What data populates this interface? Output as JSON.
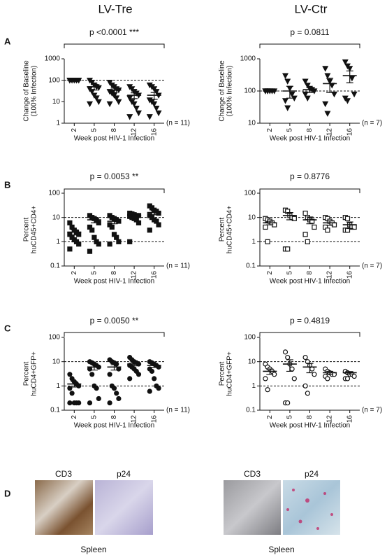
{
  "figure": {
    "columns": [
      "LV-Tre",
      "LV-Ctr"
    ],
    "panel_d": {
      "label": "D",
      "left": {
        "images": [
          "CD3",
          "p24"
        ],
        "caption": "Spleen"
      },
      "right": {
        "images": [
          "CD3",
          "p24"
        ],
        "caption": "Spleen"
      }
    }
  },
  "chart_data": [
    {
      "type": "dot",
      "panel": "A",
      "title": "p <0.0001 ***",
      "ylabel": [
        "Change of Baseline",
        "(100% Infection)"
      ],
      "xlabel": "Week post HIV-1 Infection",
      "n_label": "(n = 11)",
      "categories": [
        "2",
        "5",
        "8",
        "12",
        "16"
      ],
      "marker": "triangle-down",
      "filled": true,
      "log": true,
      "ylim": [
        1,
        1000
      ],
      "yticks": [
        1,
        10,
        100,
        1000
      ],
      "reference_lines": [
        100
      ],
      "points": [
        [
          100,
          100,
          100,
          100,
          100,
          100,
          100,
          100,
          100,
          100,
          100
        ],
        [
          100,
          80,
          60,
          50,
          45,
          40,
          30,
          20,
          15,
          10,
          8
        ],
        [
          80,
          60,
          50,
          40,
          35,
          30,
          25,
          20,
          15,
          10,
          8
        ],
        [
          50,
          40,
          30,
          25,
          20,
          15,
          10,
          8,
          5,
          3,
          2
        ],
        [
          60,
          50,
          40,
          30,
          20,
          12,
          10,
          8,
          5,
          3,
          2
        ]
      ],
      "means": [
        100,
        50,
        35,
        20,
        20
      ],
      "sems": [
        0,
        15,
        8,
        6,
        7
      ]
    },
    {
      "type": "dot",
      "title": "p = 0.0811",
      "ylabel": [
        "Change of Baseline",
        "(100% Infection)"
      ],
      "xlabel": "Week post HIV-1 Infection",
      "n_label": "(n = 7)",
      "categories": [
        "2",
        "5",
        "8",
        "12",
        "16"
      ],
      "marker": "triangle-down",
      "filled": true,
      "log": true,
      "ylim": [
        10,
        1000
      ],
      "yticks": [
        10,
        100,
        1000
      ],
      "reference_lines": [
        100
      ],
      "points": [
        [
          100,
          100,
          100,
          100,
          100,
          100,
          100
        ],
        [
          300,
          200,
          120,
          80,
          60,
          50,
          30
        ],
        [
          200,
          150,
          120,
          110,
          100,
          80,
          60
        ],
        [
          500,
          300,
          200,
          150,
          80,
          40,
          20
        ],
        [
          800,
          600,
          500,
          250,
          80,
          60,
          50
        ]
      ],
      "means": [
        100,
        100,
        110,
        170,
        300
      ],
      "sems": [
        0,
        40,
        20,
        80,
        120
      ]
    },
    {
      "type": "dot",
      "panel": "B",
      "title": "p = 0.0053 **",
      "ylabel": [
        "Percent",
        "huCD45+CD4+"
      ],
      "xlabel": "Week post HIV-1 Infection",
      "n_label": "(n = 11)",
      "categories": [
        "2",
        "5",
        "8",
        "12",
        "16"
      ],
      "marker": "square",
      "filled": true,
      "log": true,
      "ylim": [
        0.1,
        100
      ],
      "yticks": [
        0.1,
        1,
        10,
        100
      ],
      "reference_lines": [
        1,
        10
      ],
      "points": [
        [
          6,
          4,
          3,
          2.5,
          2,
          2,
          1.5,
          1.2,
          1,
          0.8,
          0.5
        ],
        [
          12,
          10,
          9,
          8,
          6,
          4,
          3,
          1.5,
          1,
          0.8,
          0.4
        ],
        [
          12,
          10,
          9,
          8,
          7,
          5,
          4,
          2,
          1.5,
          1,
          0.8
        ],
        [
          15,
          14,
          13,
          12,
          12,
          11,
          10,
          9,
          8,
          6,
          1
        ],
        [
          30,
          25,
          20,
          18,
          15,
          12,
          10,
          8,
          7,
          5,
          3
        ]
      ],
      "means": [
        2.5,
        8,
        7,
        12,
        16
      ],
      "sems": [
        0.6,
        2,
        1.5,
        1.5,
        3
      ]
    },
    {
      "type": "dot",
      "title": "p = 0.8776",
      "ylabel": [
        "Percent",
        "huCD45+CD4+"
      ],
      "xlabel": "Week post HIV-1 Infection",
      "n_label": "(n = 7)",
      "categories": [
        "2",
        "5",
        "8",
        "12",
        "16"
      ],
      "marker": "square",
      "filled": false,
      "log": true,
      "ylim": [
        0.1,
        100
      ],
      "yticks": [
        0.1,
        1,
        10,
        100
      ],
      "reference_lines": [
        1,
        10
      ],
      "points": [
        [
          9,
          8,
          7,
          6,
          5,
          4,
          1
        ],
        [
          20,
          18,
          12,
          10,
          9,
          0.5,
          0.5
        ],
        [
          15,
          10,
          8,
          7,
          4,
          2,
          1
        ],
        [
          10,
          9,
          7,
          6,
          5,
          4,
          3
        ],
        [
          10,
          9,
          5,
          4,
          4,
          3,
          3
        ]
      ],
      "means": [
        6,
        12,
        8,
        6,
        5
      ],
      "sems": [
        1,
        4,
        2.5,
        1.2,
        1.5
      ]
    },
    {
      "type": "dot",
      "panel": "C",
      "title": "p = 0.0050 **",
      "ylabel": [
        "Percent",
        "huCD4+GFP+"
      ],
      "xlabel": "Week post HIV-1 Infection",
      "n_label": "(n = 11)",
      "categories": [
        "2",
        "5",
        "8",
        "12",
        "16"
      ],
      "marker": "circle",
      "filled": true,
      "log": true,
      "ylim": [
        0.1,
        100
      ],
      "yticks": [
        0.1,
        1,
        10,
        100
      ],
      "reference_lines": [
        1,
        10
      ],
      "points": [
        [
          3,
          2,
          1.5,
          1.2,
          1,
          0.8,
          0.5,
          0.2,
          0.2,
          0.2,
          0.2
        ],
        [
          10,
          9,
          8,
          7,
          6,
          5,
          3,
          1,
          0.8,
          0.3,
          0.2
        ],
        [
          12,
          10,
          9,
          8,
          5,
          3,
          1,
          0.8,
          0.5,
          0.3,
          0.2
        ],
        [
          15,
          12,
          10,
          9,
          8,
          7,
          6,
          5,
          4,
          3,
          2
        ],
        [
          10,
          9,
          8,
          7,
          6,
          5,
          4,
          2,
          1,
          0.8,
          0.6
        ]
      ],
      "means": [
        1.2,
        6,
        6,
        8,
        7
      ],
      "sems": [
        0.3,
        1.5,
        1.5,
        1.3,
        1.2
      ]
    },
    {
      "type": "dot",
      "title": "p = 0.4819",
      "ylabel": [
        "Percent",
        "huCD4+GFP+"
      ],
      "xlabel": "Week post HIV-1 Infection",
      "n_label": "(n = 7)",
      "categories": [
        "2",
        "5",
        "8",
        "12",
        "16"
      ],
      "marker": "circle",
      "filled": false,
      "log": true,
      "ylim": [
        0.1,
        100
      ],
      "yticks": [
        0.1,
        1,
        10,
        100
      ],
      "reference_lines": [
        1,
        10
      ],
      "points": [
        [
          8,
          6,
          5,
          4,
          3,
          2,
          0.7
        ],
        [
          25,
          15,
          8,
          5,
          2,
          0.2,
          0.2
        ],
        [
          15,
          10,
          7,
          5,
          3,
          1,
          0.5
        ],
        [
          5,
          4,
          3.5,
          3,
          3,
          2.5,
          2
        ],
        [
          4,
          3.5,
          3,
          3,
          2.5,
          2,
          2
        ]
      ],
      "means": [
        4,
        8,
        6,
        3.5,
        3.5
      ],
      "sems": [
        1,
        4,
        2.5,
        0.5,
        0.4
      ]
    }
  ]
}
